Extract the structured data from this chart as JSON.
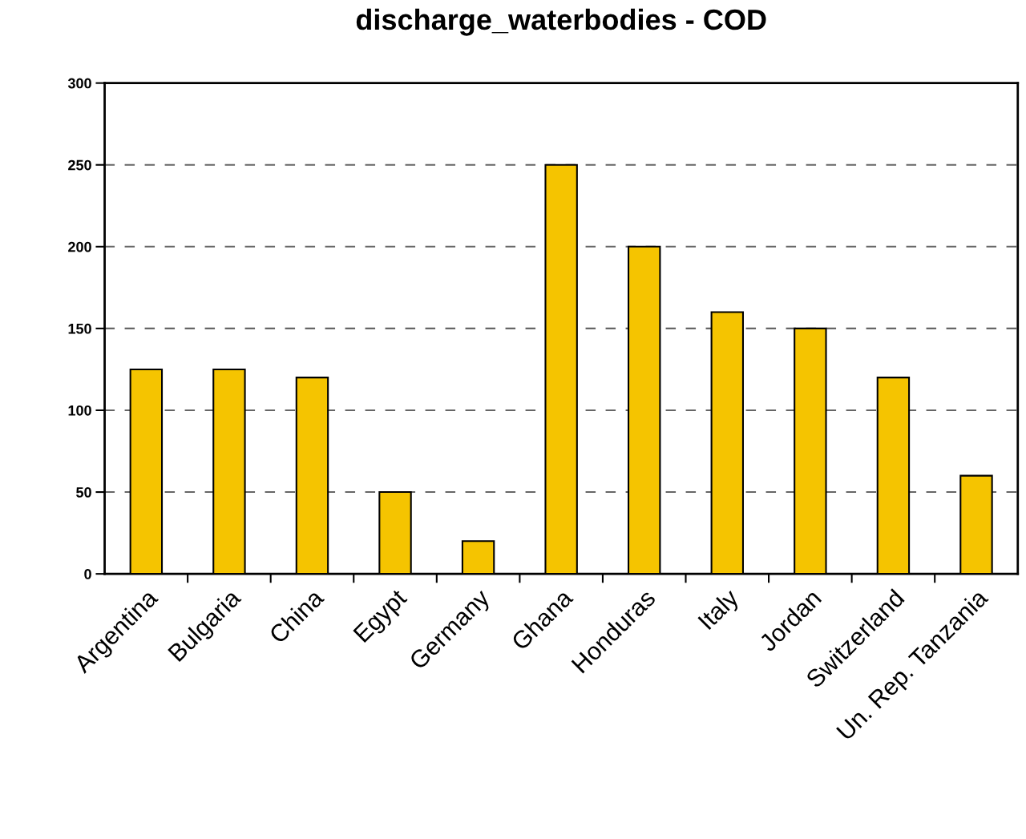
{
  "chart_data": {
    "type": "bar",
    "title": "discharge_waterbodies - COD",
    "categories": [
      "Argentina",
      "Bulgaria",
      "China",
      "Egypt",
      "Germany",
      "Ghana",
      "Honduras",
      "Italy",
      "Jordan",
      "Switzerland",
      "Un. Rep. Tanzania"
    ],
    "values": [
      125,
      125,
      120,
      50,
      20,
      250,
      200,
      160,
      150,
      120,
      60
    ],
    "color": "#f5c400",
    "ylim": [
      0,
      300
    ],
    "yticks": [
      0,
      50,
      100,
      150,
      200,
      250,
      300
    ],
    "grid": "y"
  }
}
